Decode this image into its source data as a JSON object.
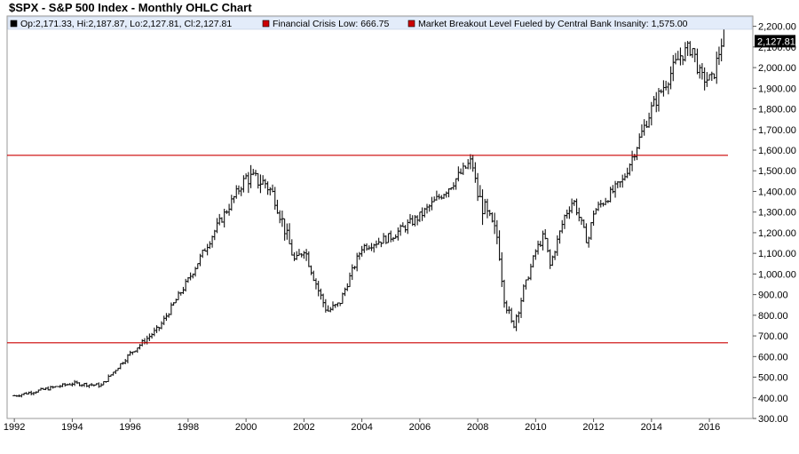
{
  "chart_data": {
    "type": "ohlc",
    "title": "$SPX - S&P 500 Index - Monthly OHLC Chart",
    "legend": [
      {
        "label": "Op:2,171.33, Hi:2,187.87, Lo:2,127.81, Cl:2,127.81",
        "color": "#000000"
      },
      {
        "label": "Financial Crisis Low: 666.75",
        "color": "#cc0000"
      },
      {
        "label": "Market Breakout Level Fueled by Central Bank Insanity: 1,575.00",
        "color": "#cc0000"
      }
    ],
    "last_value_label": "2,127.81",
    "last_value": 2127.81,
    "ylim": [
      300,
      2250
    ],
    "xlim": [
      1991.75,
      2017.5
    ],
    "y_ticks": [
      300,
      400,
      500,
      600,
      700,
      800,
      900,
      1000,
      1100,
      1200,
      1300,
      1400,
      1500,
      1600,
      1700,
      1800,
      1900,
      2000,
      2100,
      2200
    ],
    "y_tick_labels": [
      "300.00",
      "400.00",
      "500.00",
      "600.00",
      "700.00",
      "800.00",
      "900.00",
      "1,000.00",
      "1,100.00",
      "1,200.00",
      "1,300.00",
      "1,400.00",
      "1,500.00",
      "1,600.00",
      "1,700.00",
      "1,800.00",
      "1,900.00",
      "2,000.00",
      "2,100.00",
      "2,200.00"
    ],
    "x_ticks": [
      1992,
      1994,
      1996,
      1998,
      2000,
      2002,
      2004,
      2006,
      2008,
      2010,
      2012,
      2014,
      2016
    ],
    "x_tick_labels": [
      "1992",
      "1994",
      "1996",
      "1998",
      "2000",
      "2002",
      "2004",
      "2006",
      "2008",
      "2010",
      "2012",
      "2014",
      "2016"
    ],
    "horizontal_lines": [
      {
        "name": "financial-crisis-low",
        "value": 666.75,
        "color": "#cc0000"
      },
      {
        "name": "breakout-level",
        "value": 1575,
        "color": "#cc0000"
      }
    ],
    "close_anchors": [
      [
        1992.0,
        410
      ],
      [
        1993.0,
        440
      ],
      [
        1994.0,
        470
      ],
      [
        1995.0,
        460
      ],
      [
        1996.0,
        615
      ],
      [
        1997.0,
        740
      ],
      [
        1998.0,
        970
      ],
      [
        1999.0,
        1230
      ],
      [
        2000.0,
        1470
      ],
      [
        2000.67,
        1440
      ],
      [
        2001.0,
        1370
      ],
      [
        2001.7,
        1050
      ],
      [
        2002.0,
        1130
      ],
      [
        2002.55,
        900
      ],
      [
        2002.8,
        820
      ],
      [
        2003.2,
        850
      ],
      [
        2004.0,
        1130
      ],
      [
        2005.0,
        1180
      ],
      [
        2006.0,
        1280
      ],
      [
        2007.0,
        1420
      ],
      [
        2007.8,
        1550
      ],
      [
        2008.0,
        1380
      ],
      [
        2008.7,
        1170
      ],
      [
        2008.9,
        900
      ],
      [
        2009.2,
        740
      ],
      [
        2010.0,
        1110
      ],
      [
        2010.3,
        1190
      ],
      [
        2010.5,
        1040
      ],
      [
        2011.0,
        1280
      ],
      [
        2011.3,
        1360
      ],
      [
        2011.8,
        1150
      ],
      [
        2012.0,
        1300
      ],
      [
        2013.0,
        1450
      ],
      [
        2014.0,
        1800
      ],
      [
        2015.0,
        2060
      ],
      [
        2015.4,
        2100
      ],
      [
        2015.7,
        1950
      ],
      [
        2016.1,
        1940
      ],
      [
        2016.5,
        2170
      ],
      [
        2016.58,
        2127.81
      ]
    ]
  }
}
